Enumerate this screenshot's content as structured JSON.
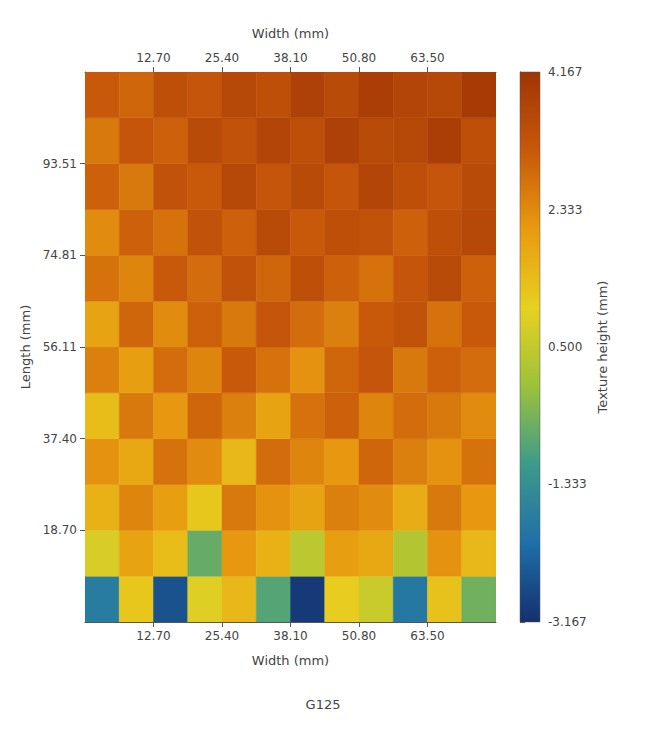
{
  "chart_data": {
    "type": "heatmap",
    "caption": "G125",
    "x_label": "Width (mm)",
    "y_label": "Length (mm)",
    "z_label": "Texture height (mm)",
    "xlim": [
      0,
      76.2
    ],
    "xticks": [
      {
        "value": 12.7,
        "label": "12.70"
      },
      {
        "value": 25.4,
        "label": "25.40"
      },
      {
        "value": 38.1,
        "label": "38.10"
      },
      {
        "value": 50.8,
        "label": "50.80"
      },
      {
        "value": 63.5,
        "label": "63.50"
      }
    ],
    "ylim": [
      0,
      112.2
    ],
    "yticks": [
      {
        "value": 18.7,
        "label": "18.70"
      },
      {
        "value": 37.4,
        "label": "37.40"
      },
      56.11,
      74.81,
      93.51
    ],
    "zlim": [
      -3.167,
      4.167
    ],
    "zticks": [
      -3.167,
      -1.333,
      {
        "value": 0.5,
        "label": "0.500"
      },
      2.333,
      4.167
    ],
    "x_bins": [
      0,
      6.35,
      12.7,
      19.05,
      25.4,
      31.75,
      38.1,
      44.45,
      50.8,
      57.15,
      63.5,
      69.85,
      76.2
    ],
    "y_bins": [
      0,
      9.35,
      18.7,
      28.05,
      37.4,
      46.75,
      56.1,
      65.45,
      74.8,
      84.15,
      93.5,
      102.85,
      112.2
    ],
    "heights": [
      [
        -1.8,
        1.2,
        -2.6,
        0.9,
        1.5,
        -0.8,
        -3.0,
        1.1,
        0.6,
        -1.9,
        1.3,
        -0.5
      ],
      [
        0.8,
        1.9,
        1.4,
        -0.6,
        2.1,
        1.6,
        0.4,
        2.0,
        1.8,
        0.3,
        2.2,
        1.5
      ],
      [
        1.6,
        2.4,
        2.0,
        1.2,
        2.6,
        2.2,
        1.9,
        2.5,
        2.3,
        1.7,
        2.6,
        2.1
      ],
      [
        2.2,
        1.8,
        2.7,
        2.3,
        1.5,
        2.8,
        2.4,
        2.1,
        2.9,
        2.5,
        2.2,
        2.7
      ],
      [
        1.4,
        2.6,
        2.1,
        2.9,
        2.5,
        1.9,
        2.7,
        3.0,
        2.4,
        2.8,
        2.6,
        2.3
      ],
      [
        2.5,
        2.0,
        2.8,
        2.4,
        3.1,
        2.7,
        2.2,
        2.9,
        3.2,
        2.6,
        3.0,
        2.8
      ],
      [
        1.9,
        2.9,
        2.3,
        3.0,
        2.6,
        3.2,
        2.8,
        2.5,
        3.1,
        3.3,
        2.7,
        3.1
      ],
      [
        2.7,
        2.4,
        3.1,
        2.8,
        3.3,
        2.9,
        3.4,
        3.0,
        2.7,
        3.2,
        3.5,
        3.0
      ],
      [
        2.3,
        3.0,
        2.7,
        3.3,
        3.0,
        3.5,
        3.1,
        3.4,
        3.3,
        3.0,
        3.4,
        3.6
      ],
      [
        3.0,
        2.6,
        3.3,
        3.1,
        3.6,
        3.2,
        3.5,
        3.2,
        3.7,
        3.4,
        3.2,
        3.5
      ],
      [
        2.6,
        3.2,
        3.0,
        3.5,
        3.3,
        3.7,
        3.4,
        3.8,
        3.5,
        3.6,
        3.9,
        3.4
      ],
      [
        3.1,
        2.9,
        3.4,
        3.2,
        3.6,
        3.4,
        3.8,
        3.5,
        3.9,
        3.7,
        3.6,
        4.0
      ]
    ],
    "grid": false
  }
}
